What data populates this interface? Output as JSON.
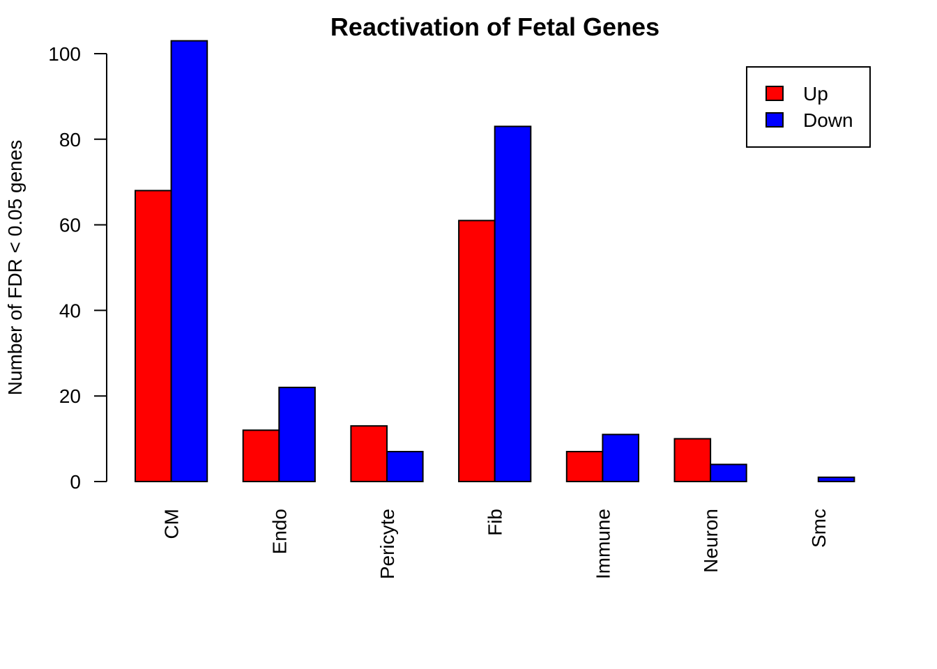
{
  "chart_data": {
    "type": "bar",
    "title": "Reactivation of Fetal Genes",
    "xlabel": "",
    "ylabel": "Number of FDR < 0.05 genes",
    "categories": [
      "CM",
      "Endo",
      "Pericyte",
      "Fib",
      "Immune",
      "Neuron",
      "Smc"
    ],
    "series": [
      {
        "name": "Up",
        "color": "#ff0000",
        "values": [
          68,
          12,
          13,
          61,
          7,
          10,
          0
        ]
      },
      {
        "name": "Down",
        "color": "#0000ff",
        "values": [
          103,
          22,
          7,
          83,
          11,
          4,
          1
        ]
      }
    ],
    "ylim": [
      0,
      100
    ],
    "yticks": [
      0,
      20,
      40,
      60,
      80,
      100
    ],
    "grid": false,
    "legend_position": "top-right"
  }
}
